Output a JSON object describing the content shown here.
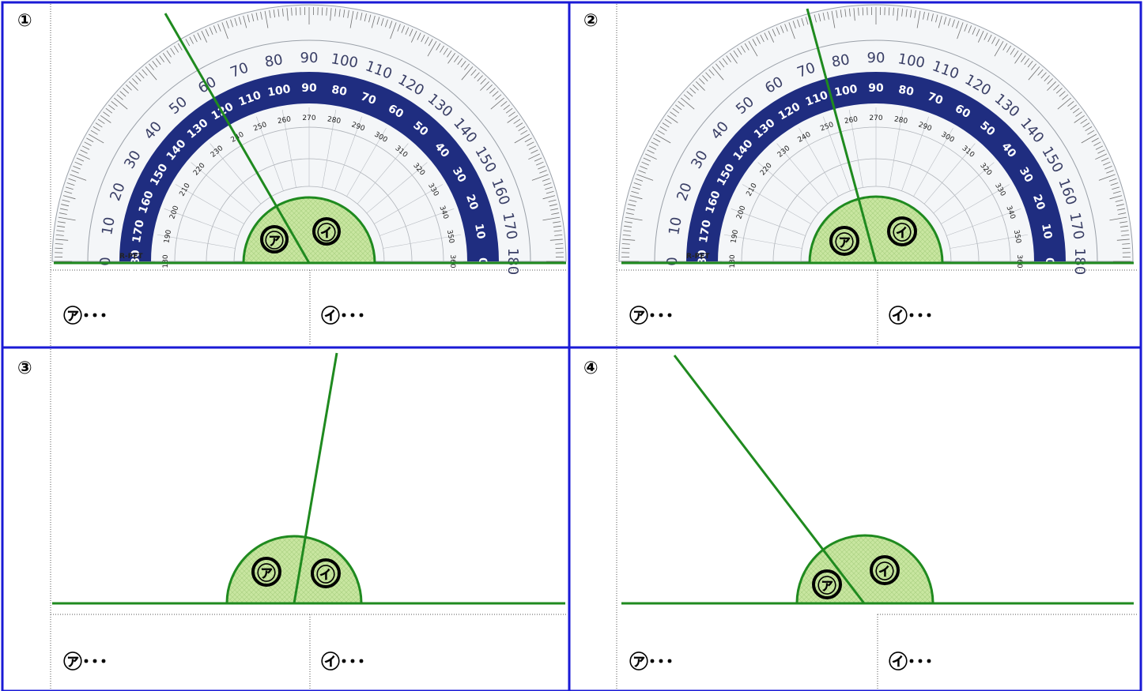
{
  "panels": [
    {
      "number": "①",
      "labels": {
        "a": "㋐",
        "b": "㋑"
      },
      "answers": {
        "a": "㋐･･･",
        "b": "㋑･･･"
      },
      "protractor": true
    },
    {
      "number": "②",
      "labels": {
        "a": "㋐",
        "b": "㋑"
      },
      "answers": {
        "a": "㋐･･･",
        "b": "㋑･･･"
      },
      "protractor": true
    },
    {
      "number": "③",
      "labels": {
        "a": "㋐",
        "b": "㋑"
      },
      "answers": {
        "a": "㋐･･･",
        "b": "㋑･･･"
      },
      "protractor": false
    },
    {
      "number": "④",
      "labels": {
        "a": "㋐",
        "b": "㋑"
      },
      "answers": {
        "a": "㋐･･･",
        "b": "㋑･･･"
      },
      "protractor": false
    }
  ],
  "protractor": {
    "outer_scale": [
      "0",
      "10",
      "20",
      "30",
      "40",
      "50",
      "60",
      "70",
      "80",
      "90",
      "100",
      "110",
      "120",
      "130",
      "140",
      "150",
      "160",
      "170",
      "180"
    ],
    "band_scale": [
      "180",
      "170",
      "160",
      "150",
      "140",
      "130",
      "120",
      "110",
      "100",
      "90",
      "80",
      "70",
      "60",
      "50",
      "40",
      "30",
      "20",
      "10",
      "0"
    ],
    "inner_scale": [
      "180",
      "190",
      "200",
      "210",
      "220",
      "230",
      "240",
      "250",
      "260",
      "270",
      "280",
      "290",
      "300",
      "310",
      "320",
      "330",
      "340",
      "350",
      "360"
    ],
    "brand": "Raymay",
    "material": "R-PET"
  },
  "colors": {
    "frame": "#1a1ad6",
    "line": "#1f8a1f",
    "semicircle_fill": "#c8e6a0",
    "band": "#1f2d80"
  }
}
